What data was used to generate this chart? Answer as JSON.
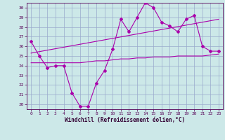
{
  "xlabel": "Windchill (Refroidissement éolien,°C)",
  "xlim": [
    -0.5,
    23.5
  ],
  "ylim": [
    19.5,
    30.5
  ],
  "yticks": [
    20,
    21,
    22,
    23,
    24,
    25,
    26,
    27,
    28,
    29,
    30
  ],
  "xticks": [
    0,
    1,
    2,
    3,
    4,
    5,
    6,
    7,
    8,
    9,
    10,
    11,
    12,
    13,
    14,
    15,
    16,
    17,
    18,
    19,
    20,
    21,
    22,
    23
  ],
  "bg_color": "#cce8e8",
  "grid_color": "#99aacc",
  "line_color": "#aa00aa",
  "main_x": [
    0,
    1,
    2,
    3,
    4,
    5,
    6,
    7,
    8,
    9,
    10,
    11,
    12,
    13,
    14,
    15,
    16,
    17,
    18,
    19,
    20,
    21,
    22,
    23
  ],
  "main_y": [
    26.5,
    25.0,
    23.8,
    24.0,
    24.0,
    21.2,
    19.8,
    19.8,
    22.2,
    23.5,
    25.7,
    28.8,
    27.5,
    29.0,
    30.5,
    30.0,
    28.5,
    28.1,
    27.5,
    28.8,
    29.2,
    26.0,
    25.5,
    25.5
  ],
  "flat_x": [
    0,
    1,
    2,
    3,
    4,
    5,
    6,
    7,
    8,
    9,
    10,
    11,
    12,
    13,
    14,
    15,
    16,
    17,
    18,
    19,
    20,
    21,
    22,
    23
  ],
  "flat_y": [
    24.3,
    24.3,
    24.3,
    24.3,
    24.3,
    24.3,
    24.3,
    24.4,
    24.5,
    24.5,
    24.6,
    24.7,
    24.7,
    24.8,
    24.8,
    24.9,
    24.9,
    24.9,
    25.0,
    25.0,
    25.0,
    25.0,
    25.1,
    25.2
  ],
  "trend_x": [
    0,
    23
  ],
  "trend_y": [
    25.3,
    28.8
  ]
}
